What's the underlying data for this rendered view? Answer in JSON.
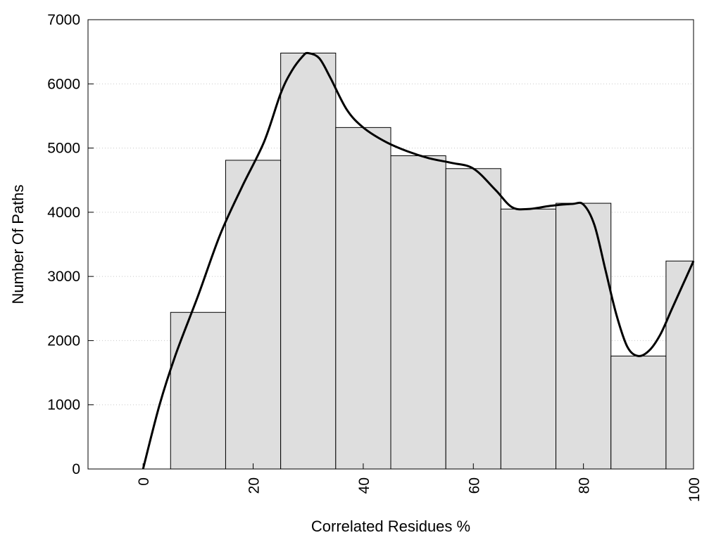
{
  "chart_data": {
    "type": "bar",
    "title": "",
    "xlabel": "Correlated Residues %",
    "ylabel": "Number Of Paths",
    "xlim": [
      -10,
      100
    ],
    "ylim": [
      0,
      7000
    ],
    "grid": "horizontal-dotted",
    "bar_fill": "#dedede",
    "bar_stroke": "#000000",
    "bin_width": 10,
    "x_ticks": [
      {
        "value": 0,
        "label": "0"
      },
      {
        "value": 20,
        "label": "20"
      },
      {
        "value": 40,
        "label": "40"
      },
      {
        "value": 60,
        "label": "60"
      },
      {
        "value": 80,
        "label": "80"
      },
      {
        "value": 100,
        "label": "100"
      }
    ],
    "y_ticks": [
      {
        "value": 0,
        "label": "0"
      },
      {
        "value": 1000,
        "label": "1000"
      },
      {
        "value": 2000,
        "label": "2000"
      },
      {
        "value": 3000,
        "label": "3000"
      },
      {
        "value": 4000,
        "label": "4000"
      },
      {
        "value": 5000,
        "label": "5000"
      },
      {
        "value": 6000,
        "label": "6000"
      },
      {
        "value": 7000,
        "label": "7000"
      }
    ],
    "bars": [
      {
        "center": 10,
        "value": 2440
      },
      {
        "center": 20,
        "value": 4810
      },
      {
        "center": 30,
        "value": 6480
      },
      {
        "center": 40,
        "value": 5320
      },
      {
        "center": 50,
        "value": 4880
      },
      {
        "center": 60,
        "value": 4680
      },
      {
        "center": 70,
        "value": 4050
      },
      {
        "center": 80,
        "value": 4140
      },
      {
        "center": 90,
        "value": 1760
      },
      {
        "center": 100,
        "value": 3240
      }
    ],
    "curve": [
      [
        0,
        0
      ],
      [
        3,
        1000
      ],
      [
        6,
        1800
      ],
      [
        10,
        2700
      ],
      [
        14,
        3650
      ],
      [
        18,
        4400
      ],
      [
        22,
        5100
      ],
      [
        25,
        5850
      ],
      [
        27,
        6200
      ],
      [
        29,
        6430
      ],
      [
        30,
        6480
      ],
      [
        32,
        6400
      ],
      [
        34,
        6100
      ],
      [
        37,
        5600
      ],
      [
        40,
        5320
      ],
      [
        44,
        5100
      ],
      [
        48,
        4950
      ],
      [
        52,
        4840
      ],
      [
        56,
        4770
      ],
      [
        60,
        4680
      ],
      [
        64,
        4350
      ],
      [
        67,
        4080
      ],
      [
        70,
        4050
      ],
      [
        74,
        4100
      ],
      [
        78,
        4130
      ],
      [
        80,
        4120
      ],
      [
        82,
        3800
      ],
      [
        84,
        3100
      ],
      [
        86,
        2400
      ],
      [
        88,
        1900
      ],
      [
        90,
        1760
      ],
      [
        92,
        1850
      ],
      [
        94,
        2100
      ],
      [
        96,
        2480
      ],
      [
        98,
        2860
      ],
      [
        100,
        3240
      ]
    ]
  }
}
